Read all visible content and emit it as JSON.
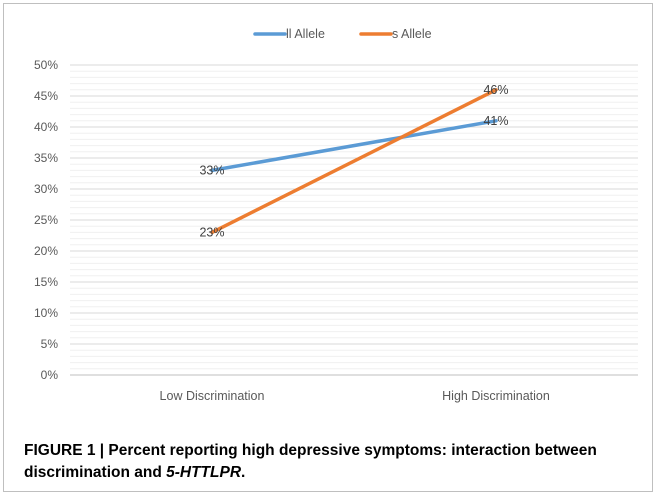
{
  "chart_data": {
    "type": "line",
    "categories": [
      "Low Discrimination",
      "High Discrimination"
    ],
    "series": [
      {
        "name": "ll Allele",
        "values": [
          33,
          41
        ],
        "labels": [
          "33%",
          "41%"
        ],
        "color": "#5b9bd5"
      },
      {
        "name": "s Allele",
        "values": [
          23,
          46
        ],
        "labels": [
          "23%",
          "46%"
        ],
        "color": "#ed7d31"
      }
    ],
    "ylim": [
      0,
      50
    ],
    "yticks": [
      "0%",
      "5%",
      "10%",
      "15%",
      "20%",
      "25%",
      "30%",
      "35%",
      "40%",
      "45%",
      "50%"
    ],
    "grid": true,
    "legend_position": "top"
  },
  "caption": {
    "prefix": "FIGURE 1 | Percent reporting high depressive symptoms: interaction between discrimination and ",
    "gene": "5-HTTLPR",
    "suffix": "."
  }
}
